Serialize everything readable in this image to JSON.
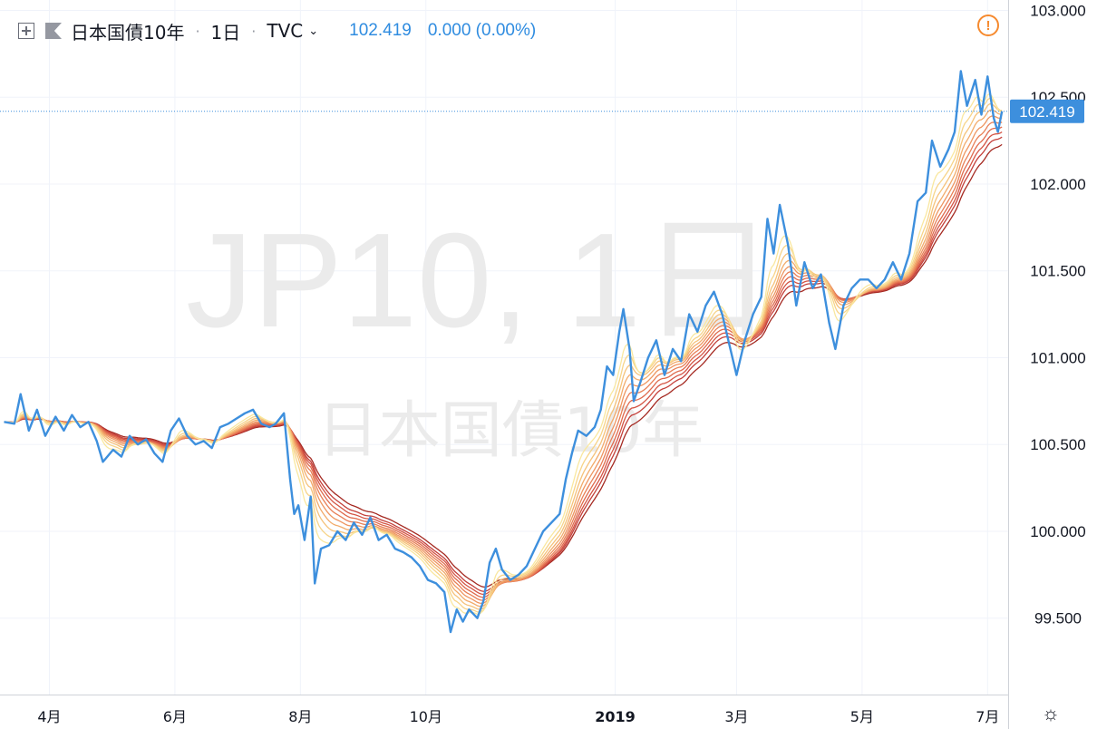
{
  "header": {
    "symbol": "日本国債10年",
    "interval": "1日",
    "exchange": "TVC",
    "last_price": "102.419",
    "change": "0.000 (0.00%)"
  },
  "watermark": {
    "line1": "JP10, 1日",
    "line2": "日本国債10年"
  },
  "colors": {
    "price_line": "#3d8fdd",
    "last_label_bg": "#3d8fdd",
    "ribbon": [
      "#f9e79f",
      "#f7d489",
      "#f5c27a",
      "#f2ab6b",
      "#ee9560",
      "#e87f56",
      "#df6a4d",
      "#d45444",
      "#c4403b",
      "#a52a22"
    ]
  },
  "chart_data": {
    "type": "line",
    "title": "",
    "y_ticks": [
      "99.500",
      "100.000",
      "100.500",
      "101.000",
      "101.500",
      "102.000",
      "102.500",
      "103.000"
    ],
    "ylim": [
      99.06,
      103.06
    ],
    "x_ticks": [
      {
        "label": "4月",
        "date": "2018-04-01"
      },
      {
        "label": "6月",
        "date": "2018-06-01"
      },
      {
        "label": "8月",
        "date": "2018-08-01"
      },
      {
        "label": "10月",
        "date": "2018-10-01"
      },
      {
        "label": "2019",
        "date": "2019-01-01"
      },
      {
        "label": "3月",
        "date": "2019-03-01"
      },
      {
        "label": "5月",
        "date": "2019-05-01"
      },
      {
        "label": "7月",
        "date": "2019-07-01"
      }
    ],
    "last_value": 102.419,
    "series": [
      {
        "type": "price",
        "points": [
          [
            "2018-03-10",
            100.63
          ],
          [
            "2018-03-15",
            100.62
          ],
          [
            "2018-03-18",
            100.79
          ],
          [
            "2018-03-22",
            100.58
          ],
          [
            "2018-03-26",
            100.7
          ],
          [
            "2018-03-30",
            100.55
          ],
          [
            "2018-04-04",
            100.66
          ],
          [
            "2018-04-08",
            100.58
          ],
          [
            "2018-04-12",
            100.67
          ],
          [
            "2018-04-16",
            100.6
          ],
          [
            "2018-04-20",
            100.63
          ],
          [
            "2018-04-24",
            100.52
          ],
          [
            "2018-04-27",
            100.4
          ],
          [
            "2018-05-02",
            100.47
          ],
          [
            "2018-05-06",
            100.43
          ],
          [
            "2018-05-10",
            100.55
          ],
          [
            "2018-05-14",
            100.5
          ],
          [
            "2018-05-18",
            100.53
          ],
          [
            "2018-05-22",
            100.45
          ],
          [
            "2018-05-26",
            100.4
          ],
          [
            "2018-05-30",
            100.58
          ],
          [
            "2018-06-03",
            100.65
          ],
          [
            "2018-06-07",
            100.55
          ],
          [
            "2018-06-11",
            100.5
          ],
          [
            "2018-06-15",
            100.52
          ],
          [
            "2018-06-19",
            100.48
          ],
          [
            "2018-06-23",
            100.6
          ],
          [
            "2018-06-27",
            100.62
          ],
          [
            "2018-07-01",
            100.65
          ],
          [
            "2018-07-05",
            100.68
          ],
          [
            "2018-07-09",
            100.7
          ],
          [
            "2018-07-13",
            100.62
          ],
          [
            "2018-07-17",
            100.6
          ],
          [
            "2018-07-20",
            100.62
          ],
          [
            "2018-07-24",
            100.68
          ],
          [
            "2018-07-27",
            100.3
          ],
          [
            "2018-07-29",
            100.1
          ],
          [
            "2018-07-31",
            100.15
          ],
          [
            "2018-08-03",
            99.95
          ],
          [
            "2018-08-06",
            100.2
          ],
          [
            "2018-08-08",
            99.7
          ],
          [
            "2018-08-11",
            99.9
          ],
          [
            "2018-08-15",
            99.92
          ],
          [
            "2018-08-19",
            100.0
          ],
          [
            "2018-08-23",
            99.95
          ],
          [
            "2018-08-27",
            100.05
          ],
          [
            "2018-08-31",
            99.98
          ],
          [
            "2018-09-04",
            100.08
          ],
          [
            "2018-09-08",
            99.95
          ],
          [
            "2018-09-12",
            99.98
          ],
          [
            "2018-09-16",
            99.9
          ],
          [
            "2018-09-20",
            99.88
          ],
          [
            "2018-09-24",
            99.85
          ],
          [
            "2018-09-28",
            99.8
          ],
          [
            "2018-10-02",
            99.72
          ],
          [
            "2018-10-06",
            99.7
          ],
          [
            "2018-10-10",
            99.65
          ],
          [
            "2018-10-13",
            99.42
          ],
          [
            "2018-10-16",
            99.55
          ],
          [
            "2018-10-19",
            99.48
          ],
          [
            "2018-10-22",
            99.55
          ],
          [
            "2018-10-26",
            99.5
          ],
          [
            "2018-10-29",
            99.6
          ],
          [
            "2018-11-01",
            99.82
          ],
          [
            "2018-11-04",
            99.9
          ],
          [
            "2018-11-07",
            99.78
          ],
          [
            "2018-11-11",
            99.72
          ],
          [
            "2018-11-15",
            99.75
          ],
          [
            "2018-11-19",
            99.8
          ],
          [
            "2018-11-23",
            99.9
          ],
          [
            "2018-11-27",
            100.0
          ],
          [
            "2018-12-01",
            100.05
          ],
          [
            "2018-12-05",
            100.1
          ],
          [
            "2018-12-08",
            100.3
          ],
          [
            "2018-12-11",
            100.45
          ],
          [
            "2018-12-14",
            100.58
          ],
          [
            "2018-12-18",
            100.55
          ],
          [
            "2018-12-22",
            100.6
          ],
          [
            "2018-12-25",
            100.7
          ],
          [
            "2018-12-28",
            100.95
          ],
          [
            "2018-12-31",
            100.9
          ],
          [
            "2019-01-03",
            101.15
          ],
          [
            "2019-01-05",
            101.28
          ],
          [
            "2019-01-08",
            101.05
          ],
          [
            "2019-01-10",
            100.75
          ],
          [
            "2019-01-13",
            100.85
          ],
          [
            "2019-01-17",
            101.0
          ],
          [
            "2019-01-21",
            101.1
          ],
          [
            "2019-01-25",
            100.9
          ],
          [
            "2019-01-29",
            101.05
          ],
          [
            "2019-02-02",
            100.98
          ],
          [
            "2019-02-06",
            101.25
          ],
          [
            "2019-02-10",
            101.15
          ],
          [
            "2019-02-14",
            101.3
          ],
          [
            "2019-02-18",
            101.38
          ],
          [
            "2019-02-22",
            101.25
          ],
          [
            "2019-02-26",
            101.05
          ],
          [
            "2019-03-01",
            100.9
          ],
          [
            "2019-03-05",
            101.1
          ],
          [
            "2019-03-09",
            101.25
          ],
          [
            "2019-03-13",
            101.35
          ],
          [
            "2019-03-16",
            101.8
          ],
          [
            "2019-03-19",
            101.6
          ],
          [
            "2019-03-22",
            101.88
          ],
          [
            "2019-03-26",
            101.65
          ],
          [
            "2019-03-30",
            101.3
          ],
          [
            "2019-04-03",
            101.55
          ],
          [
            "2019-04-07",
            101.4
          ],
          [
            "2019-04-11",
            101.48
          ],
          [
            "2019-04-15",
            101.2
          ],
          [
            "2019-04-18",
            101.05
          ],
          [
            "2019-04-22",
            101.3
          ],
          [
            "2019-04-26",
            101.4
          ],
          [
            "2019-04-30",
            101.45
          ],
          [
            "2019-05-04",
            101.45
          ],
          [
            "2019-05-08",
            101.4
          ],
          [
            "2019-05-12",
            101.45
          ],
          [
            "2019-05-16",
            101.55
          ],
          [
            "2019-05-20",
            101.45
          ],
          [
            "2019-05-24",
            101.6
          ],
          [
            "2019-05-28",
            101.9
          ],
          [
            "2019-06-01",
            101.95
          ],
          [
            "2019-06-04",
            102.25
          ],
          [
            "2019-06-08",
            102.1
          ],
          [
            "2019-06-12",
            102.2
          ],
          [
            "2019-06-15",
            102.3
          ],
          [
            "2019-06-18",
            102.65
          ],
          [
            "2019-06-21",
            102.45
          ],
          [
            "2019-06-25",
            102.6
          ],
          [
            "2019-06-28",
            102.4
          ],
          [
            "2019-07-01",
            102.62
          ],
          [
            "2019-07-04",
            102.38
          ],
          [
            "2019-07-06",
            102.3
          ],
          [
            "2019-07-08",
            102.419
          ]
        ]
      }
    ]
  }
}
